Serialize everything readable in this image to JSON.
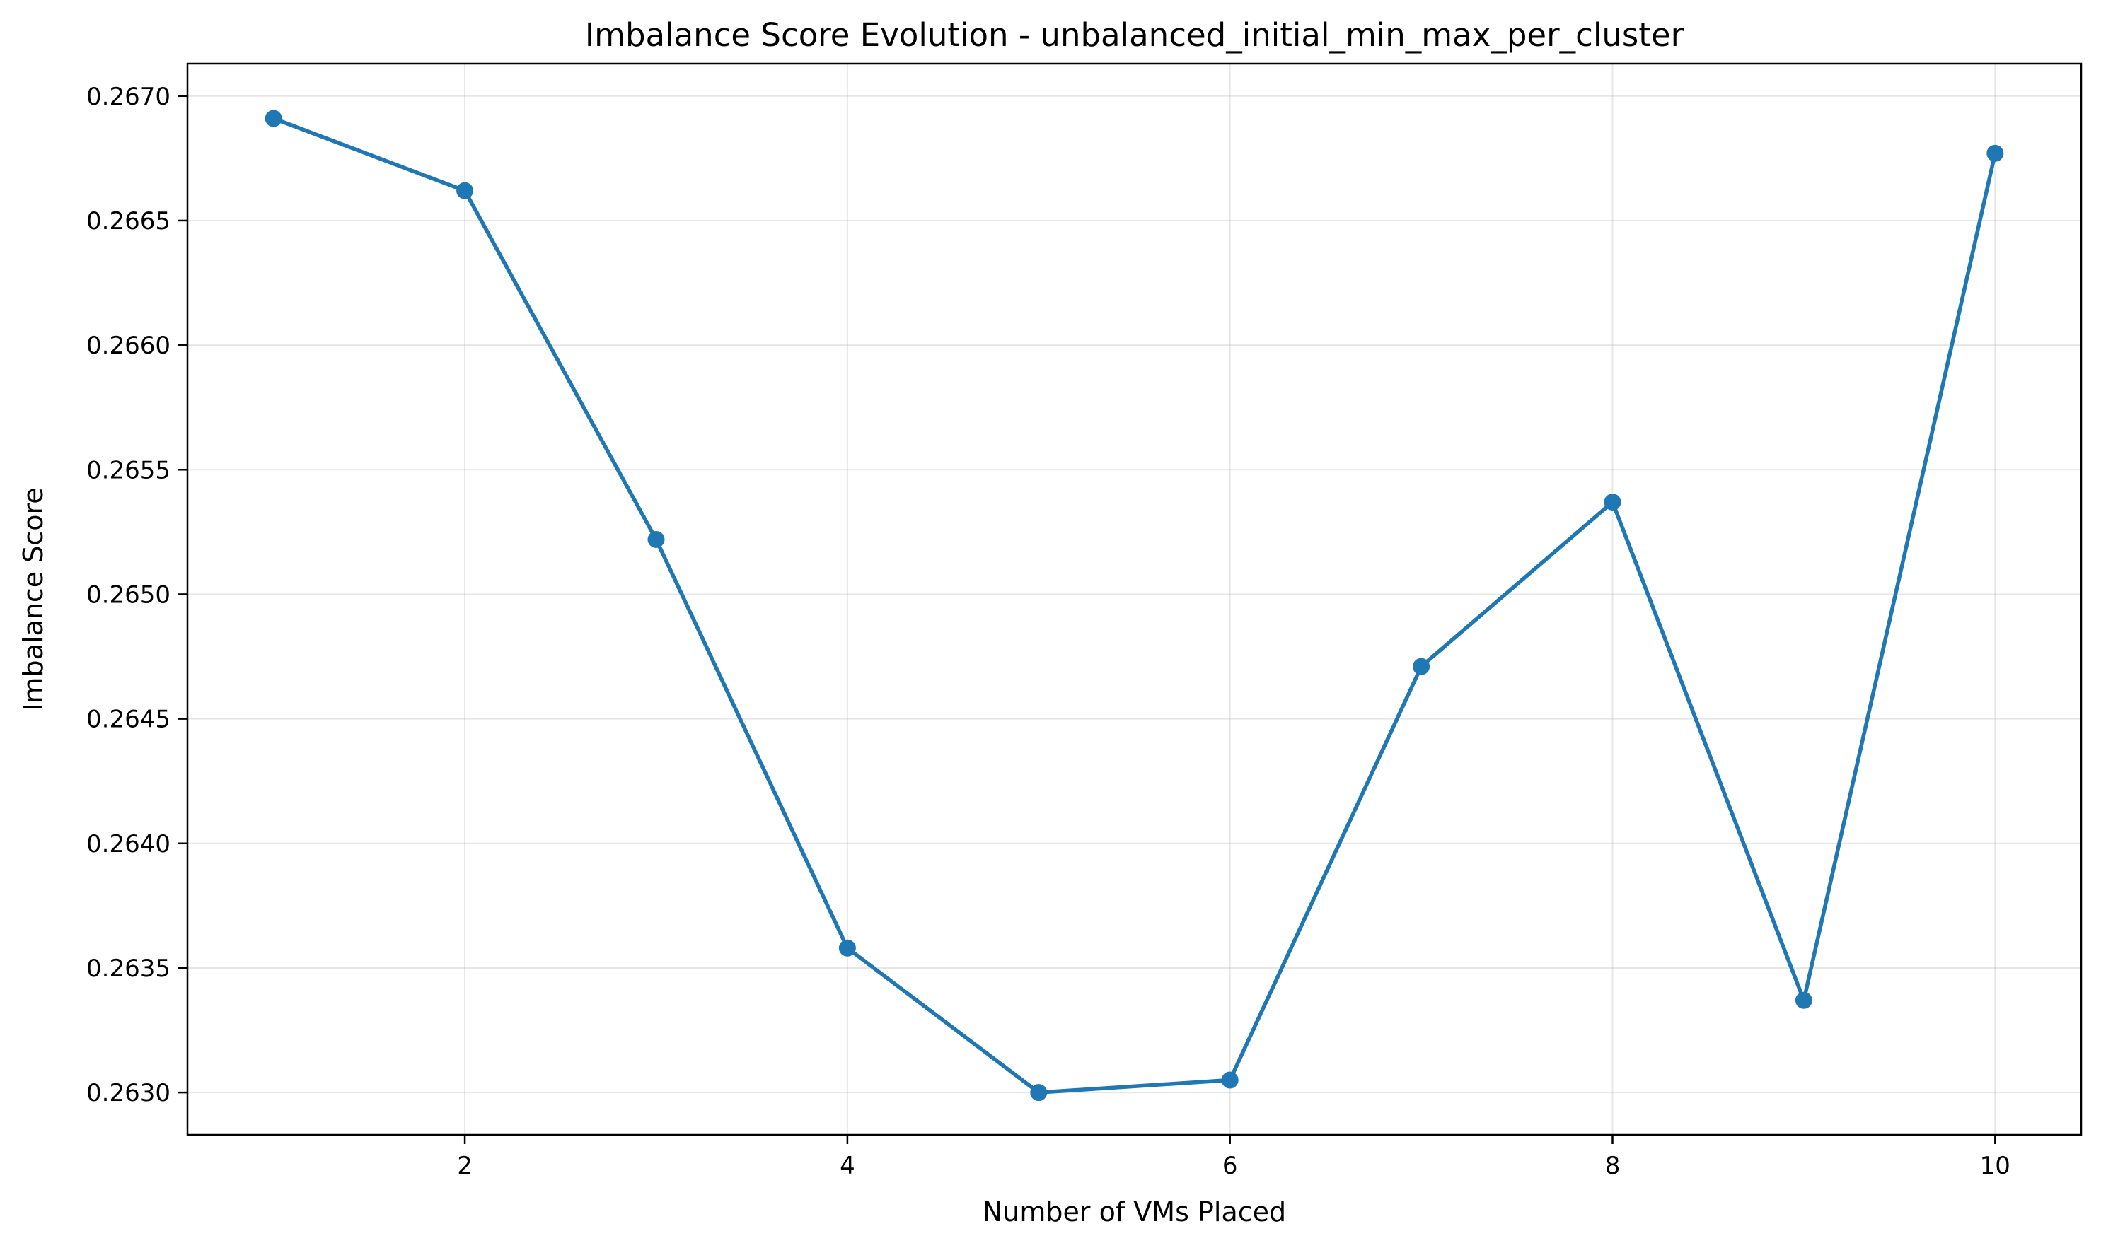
{
  "chart_data": {
    "type": "line",
    "title": "Imbalance Score Evolution - unbalanced_initial_min_max_per_cluster",
    "xlabel": "Number of VMs Placed",
    "ylabel": "Imbalance Score",
    "x": [
      1,
      2,
      3,
      4,
      5,
      6,
      7,
      8,
      9,
      10
    ],
    "series": [
      {
        "values": [
          0.26691,
          0.26662,
          0.26522,
          0.26358,
          0.263,
          0.26305,
          0.26471,
          0.26537,
          0.26337,
          0.26677
        ],
        "color": "#1f77b4",
        "marker": "circle"
      }
    ],
    "xlim": [
      0.55,
      10.45
    ],
    "ylim": [
      0.26283,
      0.26713
    ],
    "xticks": [
      2,
      4,
      6,
      8,
      10
    ],
    "xtick_labels": [
      "2",
      "4",
      "6",
      "8",
      "10"
    ],
    "yticks": [
      0.263,
      0.2635,
      0.264,
      0.2645,
      0.265,
      0.2655,
      0.266,
      0.2665,
      0.267
    ],
    "ytick_labels": [
      "0.2630",
      "0.2635",
      "0.2640",
      "0.2645",
      "0.2650",
      "0.2655",
      "0.2660",
      "0.2665",
      "0.2670"
    ],
    "grid": true,
    "legend": "none"
  }
}
